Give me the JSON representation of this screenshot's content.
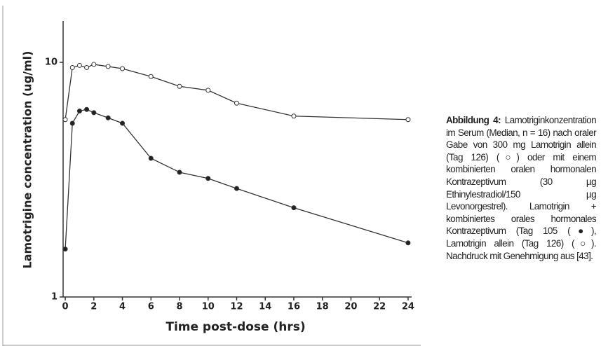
{
  "chart_data": {
    "type": "line",
    "ylabel": "Lamotrigine concentration (ug/ml)",
    "xlabel": "Time post-dose (hrs)",
    "log_y": true,
    "xlim": [
      -0.15,
      24.25
    ],
    "xticks": [
      0,
      2,
      4,
      6,
      8,
      10,
      12,
      14,
      16,
      18,
      20,
      22,
      24
    ],
    "ylim": [
      1,
      15
    ],
    "yticks": [
      1,
      10
    ],
    "x": [
      0,
      0.5,
      1,
      1.5,
      2,
      3,
      4,
      6,
      8,
      10,
      12,
      16,
      24
    ],
    "series": [
      {
        "color": "#333333",
        "marker_fill": "#ffffff",
        "values": [
          5.7,
          9.5,
          9.7,
          9.5,
          9.8,
          9.6,
          9.4,
          8.7,
          7.9,
          7.6,
          6.7,
          5.9,
          5.7
        ]
      },
      {
        "color": "#333333",
        "marker_fill": "#222222",
        "values": [
          1.6,
          5.5,
          6.2,
          6.3,
          6.1,
          5.8,
          5.5,
          3.9,
          3.4,
          3.2,
          2.9,
          2.4,
          1.7
        ]
      }
    ]
  },
  "caption": {
    "label": "Abbildung 4:",
    "text": "Lamotriginkonzentration im Serum (Median, n = 16) nach oraler Gabe von 300 mg Lamotrigin allein (Tag 126) (○) oder mit einem kombinierten oralen hormonalen Kontrazeptivum (30 µg Ethinylestradiol/150 µg Levonorgestrel). Lamotrigin + kombiniertes orales hormonales Kontrazeptivum (Tag 105 (●), Lamotrigin allein (Tag 126) (○). Nachdruck mit Genehmigung aus [43]."
  }
}
